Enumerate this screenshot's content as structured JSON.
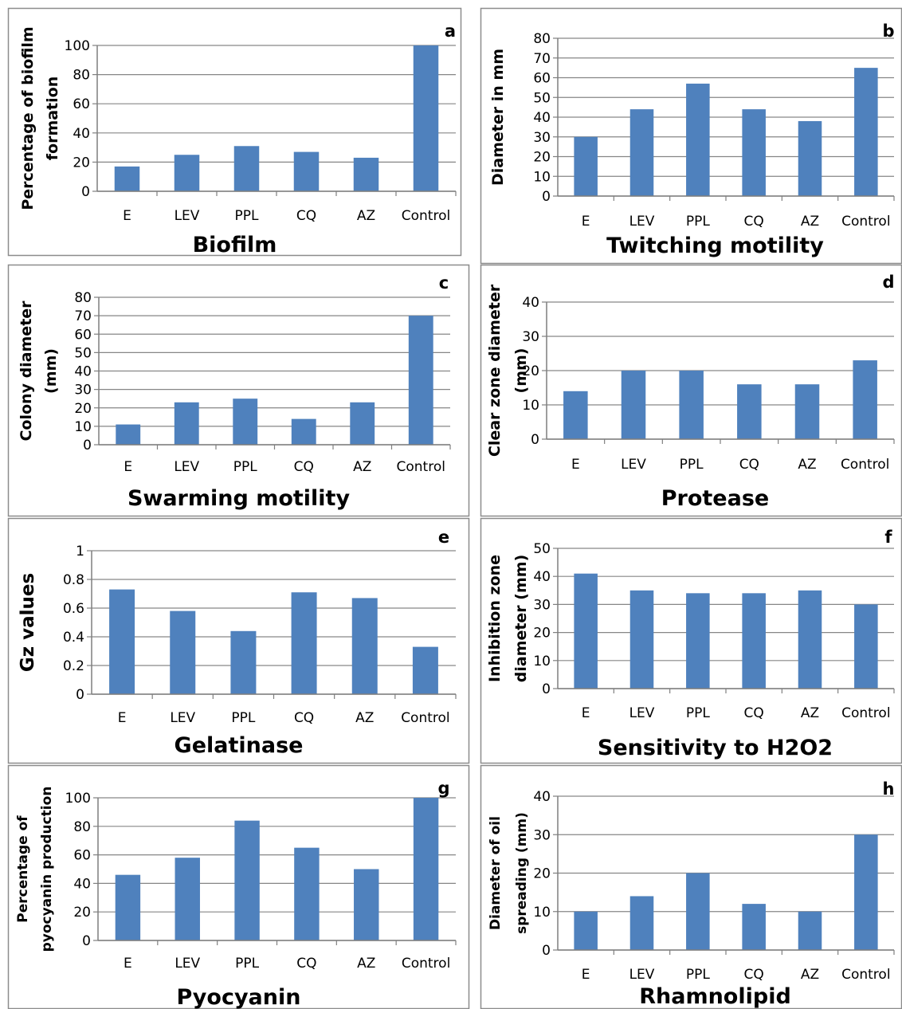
{
  "figure": {
    "bar_color": "#4F81BD",
    "grid_color": "#868686",
    "border_color": "#8c8c8c",
    "axis_color": "#7f7f7f"
  },
  "chart_data": [
    {
      "type": "bar",
      "panel": "a",
      "title": "Biofilm",
      "ylabel": [
        "Percentage of biofilm",
        "formation"
      ],
      "xlabel": "",
      "categories": [
        "E",
        "LEV",
        "PPL",
        "CQ",
        "AZ",
        "Control"
      ],
      "values": [
        17,
        25,
        31,
        27,
        23,
        100
      ],
      "ylim": [
        0,
        100
      ],
      "yticks": [
        "0",
        "20",
        "40",
        "60",
        "80",
        "100"
      ],
      "grid": true,
      "legend": "none"
    },
    {
      "type": "bar",
      "panel": "b",
      "title": "Twitching motility",
      "ylabel": [
        "Diameter in mm"
      ],
      "xlabel": "",
      "categories": [
        "E",
        "LEV",
        "PPL",
        "CQ",
        "AZ",
        "Control"
      ],
      "values": [
        30,
        44,
        57,
        44,
        38,
        65
      ],
      "ylim": [
        0,
        80
      ],
      "yticks": [
        "0",
        "10",
        "20",
        "30",
        "40",
        "50",
        "60",
        "70",
        "80"
      ],
      "grid": true,
      "legend": "none"
    },
    {
      "type": "bar",
      "panel": "c",
      "title": "Swarming motility",
      "ylabel": [
        "Colony diameter",
        "(mm)"
      ],
      "xlabel": "",
      "categories": [
        "E",
        "LEV",
        "PPL",
        "CQ",
        "AZ",
        "Control"
      ],
      "values": [
        11,
        23,
        25,
        14,
        23,
        70
      ],
      "ylim": [
        0,
        80
      ],
      "yticks": [
        "0",
        "10",
        "20",
        "30",
        "40",
        "50",
        "60",
        "70",
        "80"
      ],
      "grid": true,
      "legend": "none"
    },
    {
      "type": "bar",
      "panel": "d",
      "title": "Protease",
      "ylabel": [
        "Clear zone diameter",
        "(mm)"
      ],
      "xlabel": "",
      "categories": [
        "E",
        "LEV",
        "PPL",
        "CQ",
        "AZ",
        "Control"
      ],
      "values": [
        14,
        20,
        20,
        16,
        16,
        23
      ],
      "ylim": [
        0,
        40
      ],
      "yticks": [
        "0",
        "10",
        "20",
        "30",
        "40"
      ],
      "grid": true,
      "legend": "none"
    },
    {
      "type": "bar",
      "panel": "e",
      "title": "Gelatinase",
      "ylabel": [
        "Gz values"
      ],
      "xlabel": "",
      "categories": [
        "E",
        "LEV",
        "PPL",
        "CQ",
        "AZ",
        "Control"
      ],
      "values": [
        0.73,
        0.58,
        0.44,
        0.71,
        0.67,
        0.33
      ],
      "ylim": [
        0,
        1
      ],
      "yticks": [
        "0",
        "0.2",
        "0.4",
        "0.6",
        "0.8",
        "1"
      ],
      "grid": true,
      "legend": "none"
    },
    {
      "type": "bar",
      "panel": "f",
      "title": "Sensitivity to H2O2",
      "ylabel": [
        "Inhibition zone",
        "diameter (mm)"
      ],
      "xlabel": "",
      "categories": [
        "E",
        "LEV",
        "PPL",
        "CQ",
        "AZ",
        "Control"
      ],
      "values": [
        41,
        35,
        34,
        34,
        35,
        30
      ],
      "ylim": [
        0,
        50
      ],
      "yticks": [
        "0",
        "10",
        "20",
        "30",
        "40",
        "50"
      ],
      "grid": true,
      "legend": "none"
    },
    {
      "type": "bar",
      "panel": "g",
      "title": "Pyocyanin",
      "ylabel": [
        "Percentage of",
        "pyocyanin production"
      ],
      "xlabel": "",
      "categories": [
        "E",
        "LEV",
        "PPL",
        "CQ",
        "AZ",
        "Control"
      ],
      "values": [
        46,
        58,
        84,
        65,
        50,
        100
      ],
      "ylim": [
        0,
        100
      ],
      "yticks": [
        "0",
        "20",
        "40",
        "60",
        "80",
        "100"
      ],
      "grid": true,
      "legend": "none"
    },
    {
      "type": "bar",
      "panel": "h",
      "title": "Rhamnolipid",
      "ylabel": [
        "Diameter of oil",
        "spreading (mm)"
      ],
      "xlabel": "",
      "categories": [
        "E",
        "LEV",
        "PPL",
        "CQ",
        "AZ",
        "Control"
      ],
      "values": [
        10,
        14,
        20,
        12,
        10,
        30
      ],
      "ylim": [
        0,
        40
      ],
      "yticks": [
        "0",
        "10",
        "20",
        "30",
        "40"
      ],
      "grid": true,
      "legend": "none"
    }
  ]
}
